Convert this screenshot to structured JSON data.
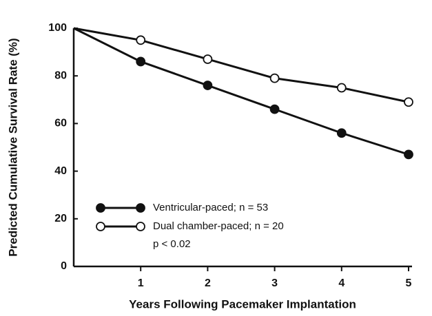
{
  "chart_data": {
    "type": "line",
    "x_label": "Years Following Pacemaker Implantation",
    "y_label": "Predicted Cumulative Survival Rate (%)",
    "x": [
      0,
      1,
      2,
      3,
      4,
      5
    ],
    "series": [
      {
        "name": "Ventricular-paced; n = 53",
        "color": "#111111",
        "marker": "filled",
        "values": [
          100,
          86,
          76,
          66,
          56,
          47
        ]
      },
      {
        "name": "Dual chamber-paced; n = 20",
        "color": "#111111",
        "marker": "open",
        "values": [
          100,
          95,
          87,
          79,
          75,
          69
        ]
      }
    ],
    "annotation": "p < 0.02",
    "xlim": [
      0,
      5
    ],
    "xticks": [
      1,
      2,
      3,
      4,
      5
    ],
    "ylim": [
      0,
      100
    ],
    "yticks": [
      0,
      20,
      40,
      60,
      80,
      100
    ]
  }
}
